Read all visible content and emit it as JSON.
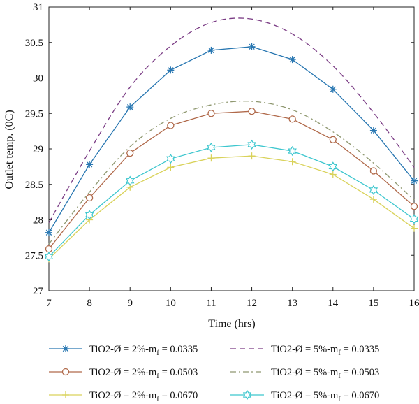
{
  "chart_data": {
    "type": "line",
    "xlabel": "Time (hrs)",
    "ylabel": "Outlet temp. (0C)",
    "xlim": [
      7,
      16
    ],
    "ylim": [
      27,
      31
    ],
    "x": [
      7,
      8,
      9,
      10,
      11,
      12,
      13,
      14,
      15,
      16
    ],
    "xticks": [
      "7",
      "8",
      "9",
      "10",
      "11",
      "12",
      "13",
      "14",
      "15",
      "16"
    ],
    "yticks": [
      "27",
      "27.5",
      "28",
      "28.5",
      "29",
      "29.5",
      "30",
      "30.5",
      "31"
    ],
    "grid": false,
    "legend_position": "bottom",
    "series": [
      {
        "name": "TiO2-Ø = 2%-m",
        "name_sub": "f",
        "name_tail": " = 0.0335",
        "values": [
          27.82,
          28.78,
          29.59,
          30.11,
          30.39,
          30.44,
          30.26,
          29.84,
          29.26,
          28.55
        ],
        "color": "#2776b1",
        "dash": "solid",
        "marker": "asterisk"
      },
      {
        "name": "TiO2-Ø = 5%-m",
        "name_sub": "f",
        "name_tail": " = 0.0335",
        "values": [
          27.96,
          28.97,
          29.87,
          30.45,
          30.78,
          30.83,
          30.62,
          30.17,
          29.51,
          28.74
        ],
        "color": "#7a3b84",
        "dash": "dashed",
        "marker": "none"
      },
      {
        "name": "TiO2-Ø = 2%-m",
        "name_sub": "f",
        "name_tail": " = 0.0503",
        "values": [
          27.59,
          28.31,
          28.94,
          29.33,
          29.5,
          29.53,
          29.42,
          29.13,
          28.69,
          28.19
        ],
        "color": "#b0694a",
        "dash": "solid",
        "marker": "circle"
      },
      {
        "name": "TiO2-Ø = 5%-m",
        "name_sub": "f",
        "name_tail": " = 0.0503",
        "values": [
          27.66,
          28.39,
          29.03,
          29.43,
          29.62,
          29.67,
          29.55,
          29.24,
          28.8,
          28.28
        ],
        "color": "#8f9870",
        "dash": "dashdot",
        "marker": "none"
      },
      {
        "name": "TiO2-Ø = 2%-m",
        "name_sub": "f",
        "name_tail": " = 0.0670",
        "values": [
          27.45,
          28.0,
          28.46,
          28.74,
          28.87,
          28.9,
          28.82,
          28.64,
          28.29,
          27.88
        ],
        "color": "#d9d25a",
        "dash": "solid",
        "marker": "plus"
      },
      {
        "name": "TiO2-Ø = 5%-m",
        "name_sub": "f",
        "name_tail": " = 0.0670",
        "values": [
          27.48,
          28.07,
          28.55,
          28.86,
          29.02,
          29.06,
          28.97,
          28.75,
          28.42,
          28.01
        ],
        "color": "#3cc6ce",
        "dash": "solid",
        "marker": "hexagram"
      }
    ]
  }
}
